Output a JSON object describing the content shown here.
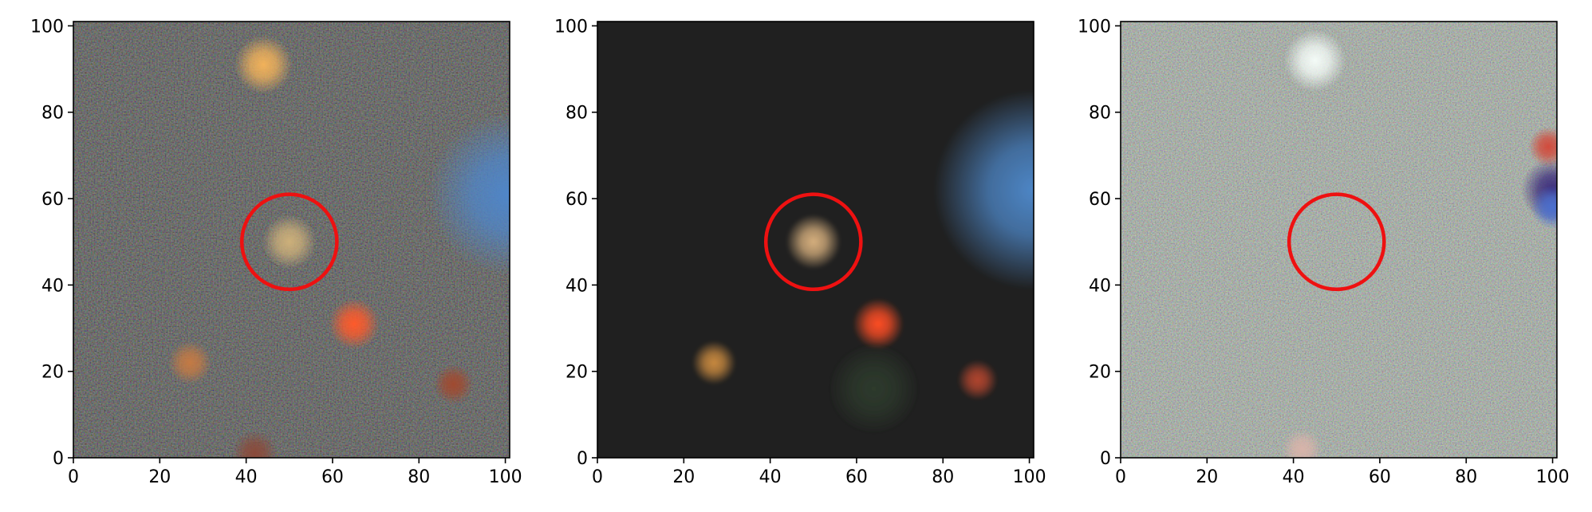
{
  "figure": {
    "panels": [
      {
        "id": "observed",
        "style": "noisy",
        "background": "#1e1f1d",
        "xticks": [
          0,
          20,
          40,
          60,
          80,
          100
        ],
        "yticks": [
          0,
          20,
          40,
          60,
          80,
          100
        ],
        "xlim": [
          0,
          101
        ],
        "ylim": [
          0,
          101
        ],
        "circle": {
          "cx": 50,
          "cy": 50,
          "r": 11,
          "color": "#ee1111"
        },
        "sources": [
          {
            "x": 44,
            "y": 91,
            "r": 3.2,
            "color": "#f2b25a"
          },
          {
            "x": 50,
            "y": 50,
            "r": 3.0,
            "color": "#cdb07a"
          },
          {
            "x": 65,
            "y": 31,
            "r": 2.8,
            "color": "#ff5a2a"
          },
          {
            "x": 27,
            "y": 22,
            "r": 2.4,
            "color": "#c47a44"
          },
          {
            "x": 88,
            "y": 17,
            "r": 2.2,
            "color": "#a04a30"
          },
          {
            "x": 42,
            "y": 1,
            "r": 2.5,
            "color": "#8a4a3a"
          },
          {
            "x": 101,
            "y": 61,
            "r": 9,
            "color": "#4f86c9"
          }
        ]
      },
      {
        "id": "model",
        "style": "smooth",
        "background": "#202020",
        "xticks": [
          0,
          20,
          40,
          60,
          80,
          100
        ],
        "yticks": [
          0,
          20,
          40,
          60,
          80,
          100
        ],
        "xlim": [
          0,
          101
        ],
        "ylim": [
          0,
          101
        ],
        "circle": {
          "cx": 50,
          "cy": 50,
          "r": 11,
          "color": "#ee1111"
        },
        "sources": [
          {
            "x": 50,
            "y": 50,
            "r": 3.0,
            "color": "#d7b07e"
          },
          {
            "x": 65,
            "y": 31,
            "r": 2.8,
            "color": "#ff4d24"
          },
          {
            "x": 27,
            "y": 22,
            "r": 2.4,
            "color": "#c98a40"
          },
          {
            "x": 88,
            "y": 18,
            "r": 2.2,
            "color": "#b2452e"
          },
          {
            "x": 64,
            "y": 16,
            "r": 5,
            "color": "#2d3a2c"
          },
          {
            "x": 101,
            "y": 62,
            "r": 11,
            "color": "#4d86c6"
          }
        ]
      },
      {
        "id": "residual",
        "style": "residual",
        "background": "#8c9a8d",
        "xticks": [
          0,
          20,
          40,
          60,
          80,
          100
        ],
        "yticks": [
          0,
          20,
          40,
          60,
          80,
          100
        ],
        "xlim": [
          0,
          101
        ],
        "ylim": [
          0,
          101
        ],
        "circle": {
          "cx": 50,
          "cy": 50,
          "r": 11,
          "color": "#ee1111"
        },
        "sources": [
          {
            "x": 45,
            "y": 92,
            "r": 3.4,
            "color": "#f4fbf7"
          },
          {
            "x": 42,
            "y": 2,
            "r": 2.2,
            "color": "#d8b4aa"
          },
          {
            "x": 100,
            "y": 62,
            "r": 3.5,
            "color": "#3b2c7c"
          },
          {
            "x": 99,
            "y": 72,
            "r": 2.2,
            "color": "#d24b3c"
          },
          {
            "x": 100,
            "y": 58,
            "r": 2.4,
            "color": "#4a6fcf"
          }
        ]
      }
    ]
  }
}
